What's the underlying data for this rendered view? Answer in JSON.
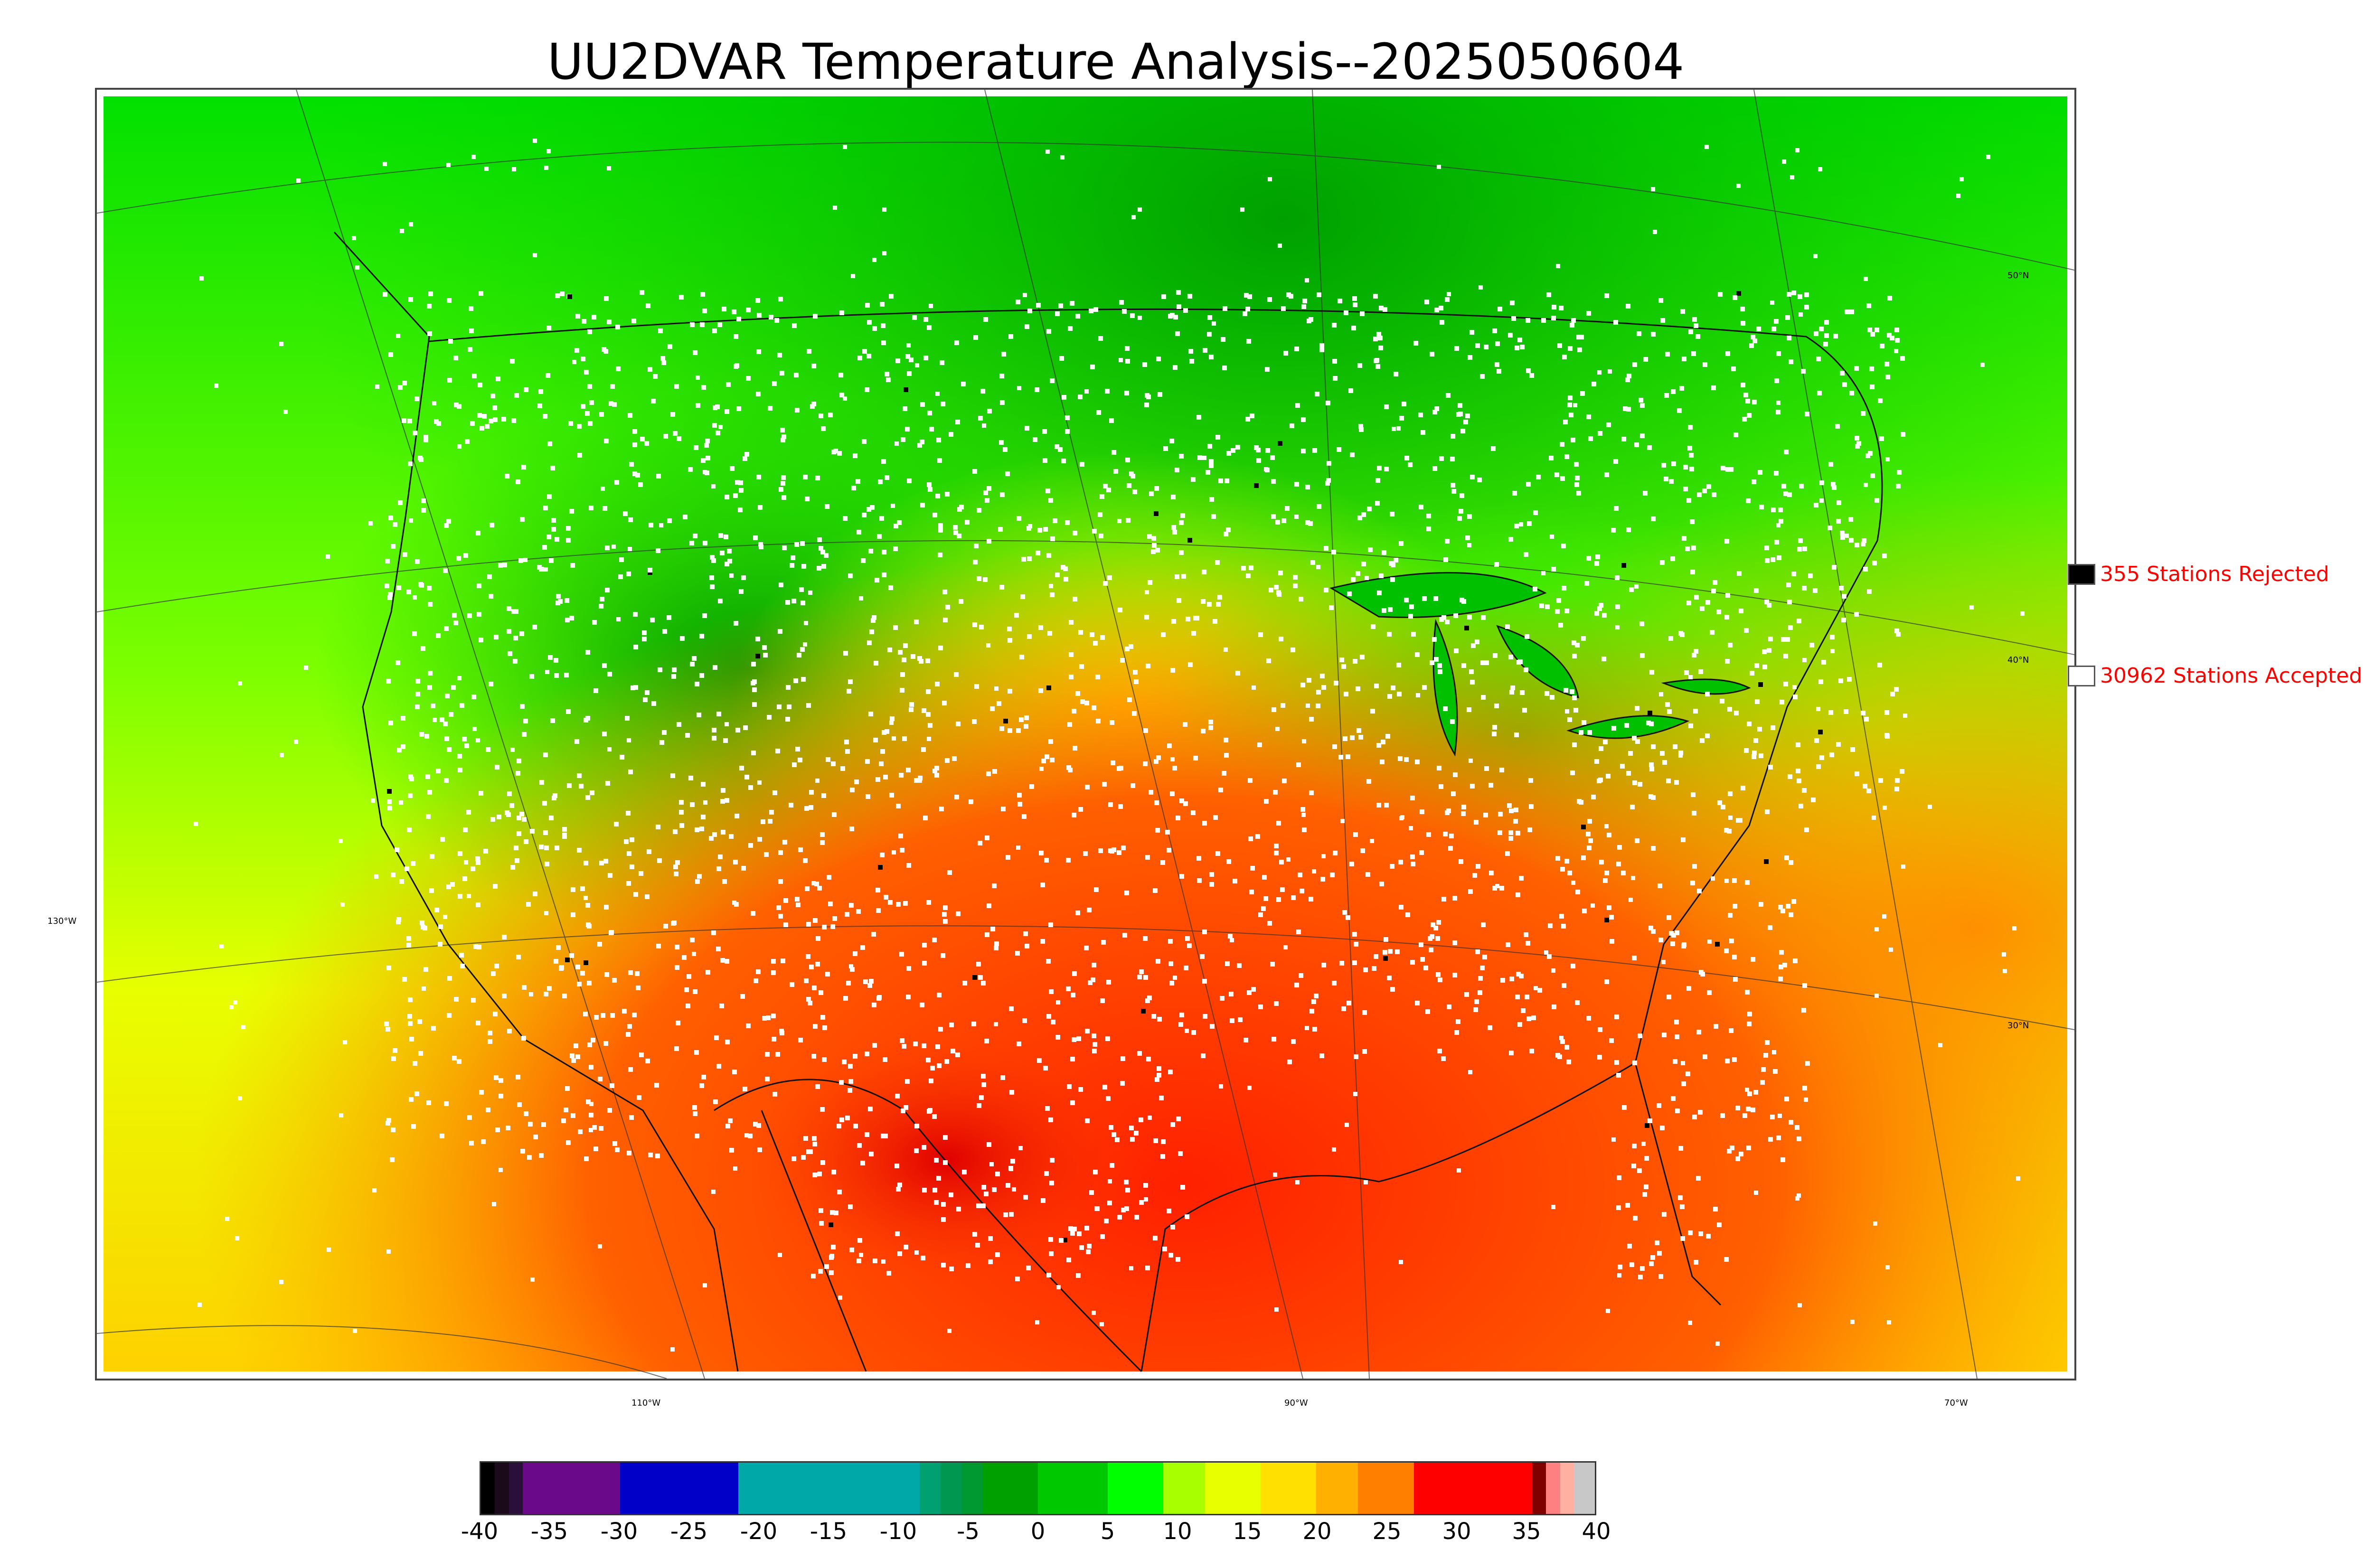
{
  "title": "UU2DVAR Temperature Analysis--2025050604",
  "legend": {
    "rejected": {
      "label": "355 Stations Rejected",
      "swatch": "#000000"
    },
    "accepted": {
      "label": "30962 Stations Accepted",
      "swatch": "#ffffff"
    }
  },
  "map": {
    "lat_labels": [
      "50°N",
      "40°N",
      "30°N"
    ],
    "lon_labels": [
      "130°W",
      "110°W",
      "90°W",
      "70°W"
    ]
  },
  "colorbar": {
    "ticks": [
      "-40",
      "-35",
      "-30",
      "-25",
      "-20",
      "-15",
      "-10",
      "-5",
      "0",
      "5",
      "10",
      "15",
      "20",
      "25",
      "30",
      "35",
      "40"
    ],
    "range": [
      -40,
      40
    ],
    "segments": [
      {
        "from": -40,
        "to": -39,
        "color": "#000000"
      },
      {
        "from": -39,
        "to": -38,
        "color": "#1a0a1a"
      },
      {
        "from": -38,
        "to": -37,
        "color": "#2a0f3a"
      },
      {
        "from": -37,
        "to": -30,
        "color": "#6a0a8a"
      },
      {
        "from": -30,
        "to": -21.5,
        "color": "#0000c8"
      },
      {
        "from": -21.5,
        "to": -8.5,
        "color": "#00a8a8"
      },
      {
        "from": -8.5,
        "to": -7,
        "color": "#00a070"
      },
      {
        "from": -7,
        "to": -5.5,
        "color": "#009850"
      },
      {
        "from": -5.5,
        "to": -4,
        "color": "#009830"
      },
      {
        "from": -4,
        "to": 0,
        "color": "#00a000"
      },
      {
        "from": 0,
        "to": 5,
        "color": "#00c800"
      },
      {
        "from": 5,
        "to": 9,
        "color": "#00ff00"
      },
      {
        "from": 9,
        "to": 12,
        "color": "#a8ff00"
      },
      {
        "from": 12,
        "to": 16,
        "color": "#e8ff00"
      },
      {
        "from": 16,
        "to": 20,
        "color": "#ffe000"
      },
      {
        "from": 20,
        "to": 23,
        "color": "#ffb000"
      },
      {
        "from": 23,
        "to": 27,
        "color": "#ff8000"
      },
      {
        "from": 27,
        "to": 35.5,
        "color": "#ff0000"
      },
      {
        "from": 35.5,
        "to": 36.5,
        "color": "#800000"
      },
      {
        "from": 36.5,
        "to": 37.5,
        "color": "#ff8080"
      },
      {
        "from": 37.5,
        "to": 38.5,
        "color": "#ffb0a0"
      },
      {
        "from": 38.5,
        "to": 40,
        "color": "#c8c8c8"
      }
    ]
  },
  "colors": {
    "cool": "#00a000",
    "mild": "#00ff00",
    "warm": "#ffe000",
    "hot": "#ff2000",
    "ocean_south": "#ff6000"
  }
}
